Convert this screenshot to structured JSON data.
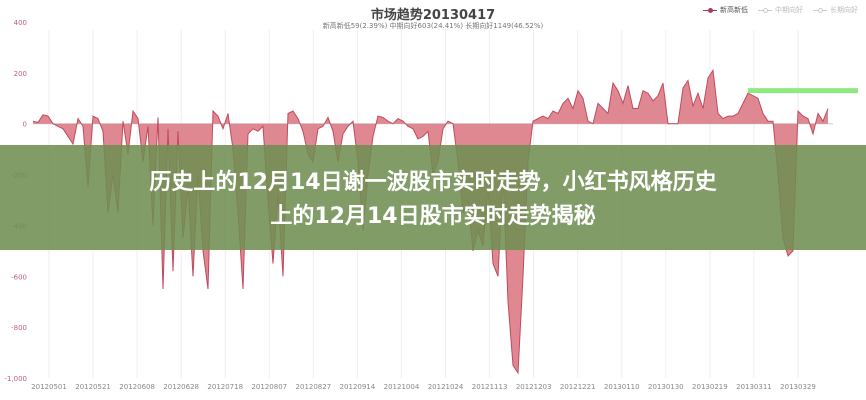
{
  "chart_data": {
    "type": "area",
    "title": "市场趋势20130417",
    "subtitle": "新高新低59(2.39%) 中期向好603(24.41%) 长期向好1149(46.52%)",
    "legend": [
      {
        "name": "新高新低",
        "active": true
      },
      {
        "name": "中期向好",
        "active": false
      },
      {
        "name": "长期向好",
        "active": false
      }
    ],
    "legend_position": "top-right",
    "x_tick_labels": [
      "20120501",
      "20120521",
      "20120608",
      "20120628",
      "20120718",
      "20120807",
      "20120827",
      "20120914",
      "20121004",
      "20121024",
      "20121113",
      "20121203",
      "20121221",
      "20130110",
      "20130130",
      "20130219",
      "20130311",
      "20130329"
    ],
    "y_ticks": [
      400,
      200,
      0,
      -200,
      -400,
      -600,
      -800,
      -1000
    ],
    "y_tick_labels": [
      "400",
      "200",
      "0",
      "-200",
      "-400",
      "-600",
      "-800",
      "-1,000"
    ],
    "ylim": [
      -1000,
      400
    ],
    "grid": "vertical",
    "series": [
      {
        "name": "新高新低",
        "color": "#d9737f",
        "values": [
          10,
          5,
          35,
          30,
          0,
          -10,
          -20,
          -50,
          -80,
          20,
          -10,
          -250,
          30,
          20,
          -30,
          -350,
          -200,
          -350,
          10,
          -120,
          50,
          20,
          -150,
          -10,
          -400,
          25,
          -650,
          -20,
          -580,
          -30,
          -450,
          -250,
          -600,
          -200,
          -500,
          -650,
          50,
          30,
          -20,
          40,
          -100,
          -350,
          -650,
          -40,
          -20,
          -30,
          -10,
          -300,
          -550,
          -280,
          -600,
          40,
          50,
          20,
          -30,
          -120,
          -150,
          -20,
          -10,
          25,
          -30,
          -150,
          -40,
          -10,
          10,
          -150,
          -420,
          -200,
          -50,
          30,
          25,
          10,
          0,
          20,
          10,
          -10,
          -20,
          -60,
          -50,
          -30,
          -200,
          -150,
          -20,
          10,
          0,
          -150,
          -350,
          -300,
          -500,
          -420,
          -480,
          -250,
          -550,
          -600,
          -200,
          -700,
          -950,
          -980,
          -600,
          -150,
          10,
          20,
          30,
          20,
          50,
          40,
          80,
          100,
          60,
          130,
          100,
          10,
          0,
          80,
          60,
          40,
          160,
          130,
          80,
          150,
          60,
          60,
          130,
          120,
          90,
          110,
          160,
          0,
          0,
          0,
          140,
          170,
          70,
          120,
          60,
          180,
          210,
          40,
          20,
          30,
          30,
          40,
          80,
          120,
          110,
          100,
          40,
          10,
          10,
          -200,
          -450,
          -520,
          -500,
          50,
          30,
          20,
          -40,
          40,
          10,
          60
        ]
      }
    ],
    "highlight_line": {
      "value": 130,
      "color": "#8eea7e"
    }
  },
  "overlay": {
    "headline_line1": "历史上的12月14日谢一波股市实时走势，小红书风格历史",
    "headline_line2": "上的12月14日股市实时走势揭秘"
  }
}
